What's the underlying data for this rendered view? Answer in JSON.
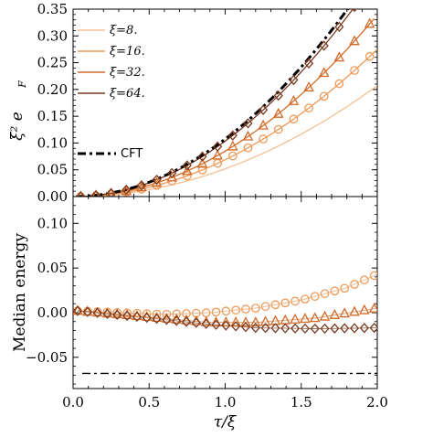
{
  "chart_data": [
    {
      "type": "line",
      "panel": "top",
      "ylabel": "ξ² e_F",
      "xlim": [
        0,
        2
      ],
      "ylim": [
        0,
        0.35
      ],
      "yticks": [
        "0.00",
        "0.05",
        "0.10",
        "0.15",
        "0.20",
        "0.25",
        "0.30",
        "0.35"
      ],
      "legend_placement": "left",
      "series": [
        {
          "name": "ξ=8.",
          "color": "#f3c191",
          "marker": "none",
          "curve_a": 0.0518,
          "x_end": 2.0
        },
        {
          "name": "ξ=16.",
          "color": "#ee9a58",
          "marker": "circle",
          "curve_a": 0.0688,
          "x_end": 2.0
        },
        {
          "name": "ξ=32.",
          "color": "#d36a28",
          "marker": "triangle",
          "curve_a": 0.0848,
          "x_end": 1.98
        },
        {
          "name": "ξ=64.",
          "color": "#7a3b21",
          "marker": "diamond",
          "curve_a": 0.1035,
          "x_end": 1.92
        },
        {
          "name": "CFT",
          "color": "#000000",
          "style": "dash-dot",
          "curve_a": 0.1075,
          "x_end": 1.86
        }
      ]
    },
    {
      "type": "scatter",
      "panel": "bottom",
      "xlabel": "τ/ξ",
      "ylabel": "Median energy",
      "xlim": [
        0,
        2
      ],
      "ylim": [
        -0.085,
        0.13
      ],
      "xticks": [
        "0.0",
        "0.5",
        "1.0",
        "1.5",
        "2.0"
      ],
      "yticks": [
        "0.10",
        "0.05",
        "0.00",
        "−0.05"
      ],
      "series": [
        {
          "name": "ξ=16.",
          "color": "#ee9a58",
          "marker": "circle",
          "values_at_x": {
            "x": [
              0.03,
              0.6,
              0.9,
              1.2,
              1.5,
              1.8,
              2.0
            ],
            "y": [
              0.002,
              -0.002,
              0.0,
              0.005,
              0.014,
              0.028,
              0.043
            ]
          }
        },
        {
          "name": "ξ=32.",
          "color": "#d36a28",
          "marker": "triangle",
          "values_at_x": {
            "x": [
              0.03,
              0.5,
              0.9,
              1.2,
              1.6,
              2.0
            ],
            "y": [
              0.002,
              -0.005,
              -0.011,
              -0.011,
              -0.006,
              0.005
            ]
          }
        },
        {
          "name": "ξ=64.",
          "color": "#7a3b21",
          "marker": "diamond",
          "values_at_x": {
            "x": [
              0.03,
              0.5,
              0.9,
              1.2,
              1.6,
              2.0
            ],
            "y": [
              0.002,
              -0.006,
              -0.013,
              -0.017,
              -0.018,
              -0.017
            ]
          }
        },
        {
          "name": "CFT",
          "color": "#000000",
          "style": "dash-dot",
          "constant": -0.068
        }
      ]
    }
  ]
}
